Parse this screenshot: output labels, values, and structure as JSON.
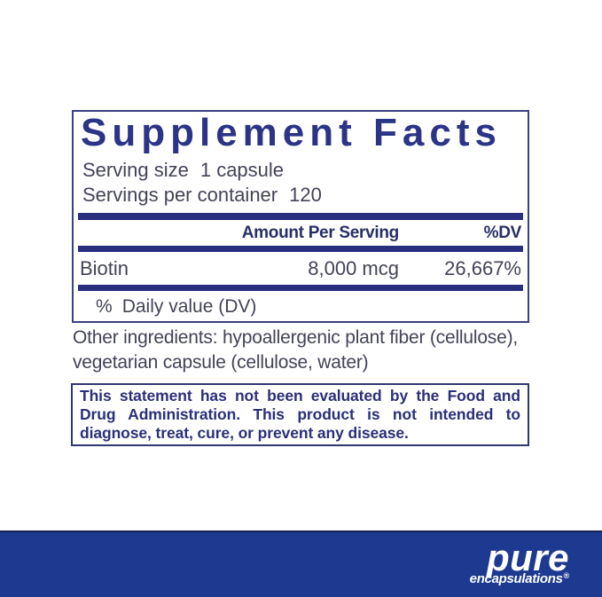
{
  "panel": {
    "title": "Supplement Facts",
    "serving_size_label": "Serving size",
    "serving_size_value": "1 capsule",
    "servings_per_container_label": "Servings per container",
    "servings_per_container_value": "120",
    "table": {
      "amount_header": "Amount Per Serving",
      "dv_header": "%DV",
      "rows": [
        {
          "name": "Biotin",
          "amount": "8,000 mcg",
          "dv": "26,667%"
        }
      ],
      "footnote_symbol": "%",
      "footnote_text": "Daily value (DV)"
    }
  },
  "other_ingredients": "Other ingredients: hypoallergenic plant fiber (cellulose), vegetarian capsule (cellulose, water)",
  "disclaimer": "This statement has not been evaluated by the Food and Drug Administration. This product is not intended to diagnose, treat, cure, or prevent any disease.",
  "footer": {
    "brand_name": "pure",
    "brand_subname": "encapsulations",
    "registered_mark": "®"
  },
  "colors": {
    "title_navy": "#2c3487",
    "divider_navy": "#2a2e7f",
    "body_text": "#434358",
    "disclaimer_navy": "#2b3078",
    "footer_blue": "#1d3a90",
    "logo_white": "#ffffff"
  }
}
